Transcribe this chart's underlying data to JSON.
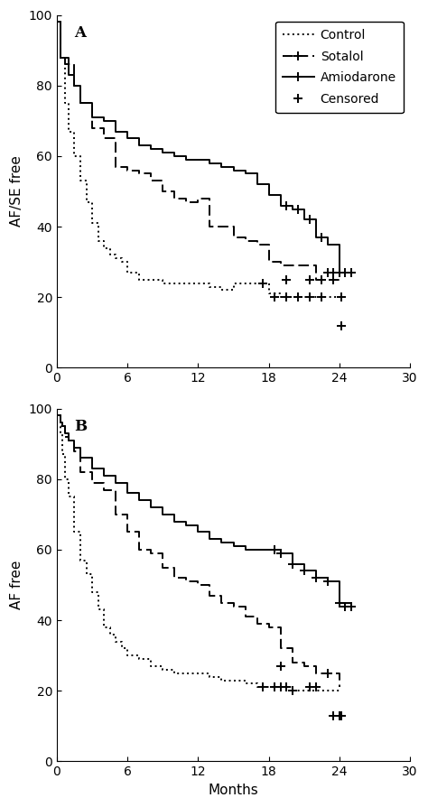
{
  "background_color": "#ffffff",
  "panel_A": {
    "label": "A",
    "ylabel": "AF/SE free",
    "ylim": [
      0,
      100
    ],
    "xlim": [
      0,
      30
    ],
    "yticks": [
      0,
      20,
      40,
      60,
      80,
      100
    ],
    "xticks": [
      0,
      6,
      12,
      18,
      24,
      30
    ],
    "control": {
      "x": [
        0,
        0.3,
        0.7,
        1.0,
        1.5,
        2.0,
        2.5,
        3.0,
        3.5,
        4.0,
        4.5,
        5.0,
        5.5,
        6.0,
        7.0,
        8.0,
        9.0,
        10.0,
        11.0,
        12.0,
        13.0,
        14.0,
        15.0,
        16.0,
        17.0,
        18.0,
        19.0,
        20.0,
        21.0,
        22.0,
        23.0,
        24.0
      ],
      "y": [
        98,
        88,
        75,
        67,
        60,
        53,
        47,
        41,
        36,
        34,
        32,
        31,
        30,
        27,
        25,
        25,
        24,
        24,
        24,
        24,
        23,
        22,
        24,
        24,
        24,
        21,
        20,
        20,
        20,
        20,
        20,
        20
      ]
    },
    "sotalol": {
      "x": [
        0,
        0.3,
        0.7,
        1.0,
        1.5,
        2.0,
        3.0,
        4.0,
        5.0,
        6.0,
        7.0,
        8.0,
        9.0,
        10.0,
        11.0,
        12.0,
        13.0,
        14.0,
        15.0,
        16.0,
        17.0,
        18.0,
        19.0,
        20.0,
        21.0,
        22.0,
        23.0,
        24.0
      ],
      "y": [
        98,
        88,
        88,
        86,
        80,
        75,
        68,
        65,
        57,
        56,
        55,
        53,
        50,
        48,
        47,
        48,
        40,
        40,
        37,
        36,
        35,
        30,
        29,
        29,
        29,
        25,
        25,
        25
      ]
    },
    "amiodarone": {
      "x": [
        0,
        0.3,
        0.7,
        1.0,
        1.5,
        2.0,
        3.0,
        4.0,
        5.0,
        6.0,
        7.0,
        8.0,
        9.0,
        10.0,
        11.0,
        12.0,
        13.0,
        14.0,
        15.0,
        16.0,
        17.0,
        18.0,
        19.0,
        20.0,
        21.0,
        22.0,
        23.0,
        24.0,
        25.0
      ],
      "y": [
        98,
        88,
        86,
        83,
        80,
        75,
        71,
        70,
        67,
        65,
        63,
        62,
        61,
        60,
        59,
        59,
        58,
        57,
        56,
        55,
        52,
        49,
        46,
        45,
        42,
        37,
        35,
        27,
        27
      ]
    },
    "censored_control": {
      "x": [
        17.5,
        18.5,
        19.5,
        20.5,
        21.5,
        22.5,
        24.2
      ],
      "y": [
        24,
        20,
        20,
        20,
        20,
        20,
        20
      ]
    },
    "censored_sotalol": {
      "x": [
        19.5,
        21.5,
        22.5,
        23.5,
        24.2
      ],
      "y": [
        25,
        25,
        25,
        25,
        12
      ]
    },
    "censored_amiodarone": {
      "x": [
        19.5,
        20.5,
        21.5,
        22.5,
        23.0,
        23.5,
        24.0,
        24.5,
        25.0
      ],
      "y": [
        46,
        45,
        42,
        37,
        27,
        27,
        27,
        27,
        27
      ]
    }
  },
  "panel_B": {
    "label": "B",
    "ylabel": "AF free",
    "ylim": [
      0,
      100
    ],
    "xlim": [
      0,
      30
    ],
    "yticks": [
      0,
      20,
      40,
      60,
      80,
      100
    ],
    "xticks": [
      0,
      6,
      12,
      18,
      24,
      30
    ],
    "control": {
      "x": [
        0,
        0.3,
        0.5,
        0.7,
        1.0,
        1.5,
        2.0,
        2.5,
        3.0,
        3.5,
        4.0,
        4.5,
        5.0,
        5.5,
        6.0,
        7.0,
        8.0,
        9.0,
        10.0,
        11.0,
        12.0,
        13.0,
        14.0,
        15.0,
        16.0,
        17.0,
        18.0,
        19.0,
        20.0,
        21.0,
        22.0,
        23.0,
        24.0
      ],
      "y": [
        98,
        93,
        87,
        80,
        75,
        65,
        57,
        53,
        48,
        43,
        38,
        36,
        34,
        32,
        30,
        29,
        27,
        26,
        25,
        25,
        25,
        24,
        23,
        23,
        22,
        21,
        21,
        21,
        20,
        20,
        20,
        20,
        20
      ]
    },
    "sotalol": {
      "x": [
        0,
        0.3,
        0.7,
        1.0,
        1.5,
        2.0,
        3.0,
        4.0,
        5.0,
        6.0,
        7.0,
        8.0,
        9.0,
        10.0,
        11.0,
        12.0,
        13.0,
        14.0,
        15.0,
        16.0,
        17.0,
        18.0,
        19.0,
        20.0,
        21.0,
        22.0,
        23.0,
        24.0
      ],
      "y": [
        98,
        95,
        92,
        91,
        88,
        82,
        79,
        77,
        70,
        65,
        60,
        59,
        55,
        52,
        51,
        50,
        47,
        45,
        44,
        41,
        39,
        38,
        32,
        28,
        27,
        25,
        25,
        21
      ]
    },
    "amiodarone": {
      "x": [
        0,
        0.3,
        0.5,
        0.7,
        1.0,
        1.5,
        2.0,
        3.0,
        4.0,
        5.0,
        6.0,
        7.0,
        8.0,
        9.0,
        10.0,
        11.0,
        12.0,
        13.0,
        14.0,
        15.0,
        16.0,
        17.0,
        18.0,
        19.0,
        20.0,
        21.0,
        22.0,
        23.0,
        24.0,
        25.0
      ],
      "y": [
        98,
        96,
        95,
        93,
        91,
        89,
        86,
        83,
        81,
        79,
        76,
        74,
        72,
        70,
        68,
        67,
        65,
        63,
        62,
        61,
        60,
        60,
        60,
        59,
        56,
        54,
        52,
        51,
        45,
        44
      ]
    },
    "censored_control": {
      "x": [
        17.5,
        18.5,
        19.0,
        19.5,
        20.0,
        23.5,
        24.2
      ],
      "y": [
        21,
        21,
        21,
        21,
        20,
        13,
        13
      ]
    },
    "censored_sotalol": {
      "x": [
        19.0,
        21.5,
        22.0,
        23.0,
        24.0
      ],
      "y": [
        27,
        21,
        21,
        25,
        13
      ]
    },
    "censored_amiodarone": {
      "x": [
        18.5,
        19.0,
        20.0,
        21.0,
        22.0,
        23.0,
        24.0,
        24.5,
        25.0
      ],
      "y": [
        60,
        59,
        56,
        54,
        52,
        51,
        45,
        44,
        44
      ]
    }
  },
  "legend": {
    "control_label": "Control",
    "sotalol_label": "Sotalol",
    "amiodarone_label": "Amiodarone",
    "censored_label": "Censored"
  },
  "xlabel": "Months",
  "line_color": "#000000",
  "lw": 1.4,
  "fontsize": 11,
  "tick_fontsize": 10
}
